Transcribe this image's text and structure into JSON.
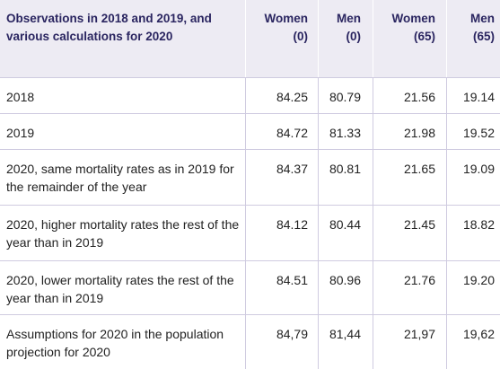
{
  "table": {
    "header": {
      "description": "Observations in 2018 and 2019, and various calculations for 2020",
      "col1_line1": "Women",
      "col1_line2": "(0)",
      "col2_line1": "Men",
      "col2_line2": "(0)",
      "col3_line1": "Women",
      "col3_line2": "(65)",
      "col4_line1": "Men",
      "col4_line2": "(65)"
    },
    "rows": [
      {
        "label": "2018",
        "women0": "84.25",
        "men0": "80.79",
        "women65": "21.56",
        "men65": "19.14"
      },
      {
        "label": "2019",
        "women0": "84.72",
        "men0": "81.33",
        "women65": "21.98",
        "men65": "19.52"
      },
      {
        "label": "2020, same mortality rates as in 2019 for the remainder of the year",
        "women0": "84.37",
        "men0": "80.81",
        "women65": "21.65",
        "men65": "19.09"
      },
      {
        "label": "2020, higher mortality rates the rest of the year than in 2019",
        "women0": "84.12",
        "men0": "80.44",
        "women65": "21.45",
        "men65": "18.82"
      },
      {
        "label": "2020, lower mortality rates the rest of the year than in 2019",
        "women0": "84.51",
        "men0": "80.96",
        "women65": "21.76",
        "men65": "19.20"
      },
      {
        "label": "Assumptions for 2020 in the population projection for 2020",
        "women0": "84,79",
        "men0": "81,44",
        "women65": "21,97",
        "men65": "19,62"
      }
    ]
  },
  "colors": {
    "header_background": "#edebf3",
    "header_text": "#2a2560",
    "body_text": "#222222",
    "rule": "#cfcbe0"
  }
}
